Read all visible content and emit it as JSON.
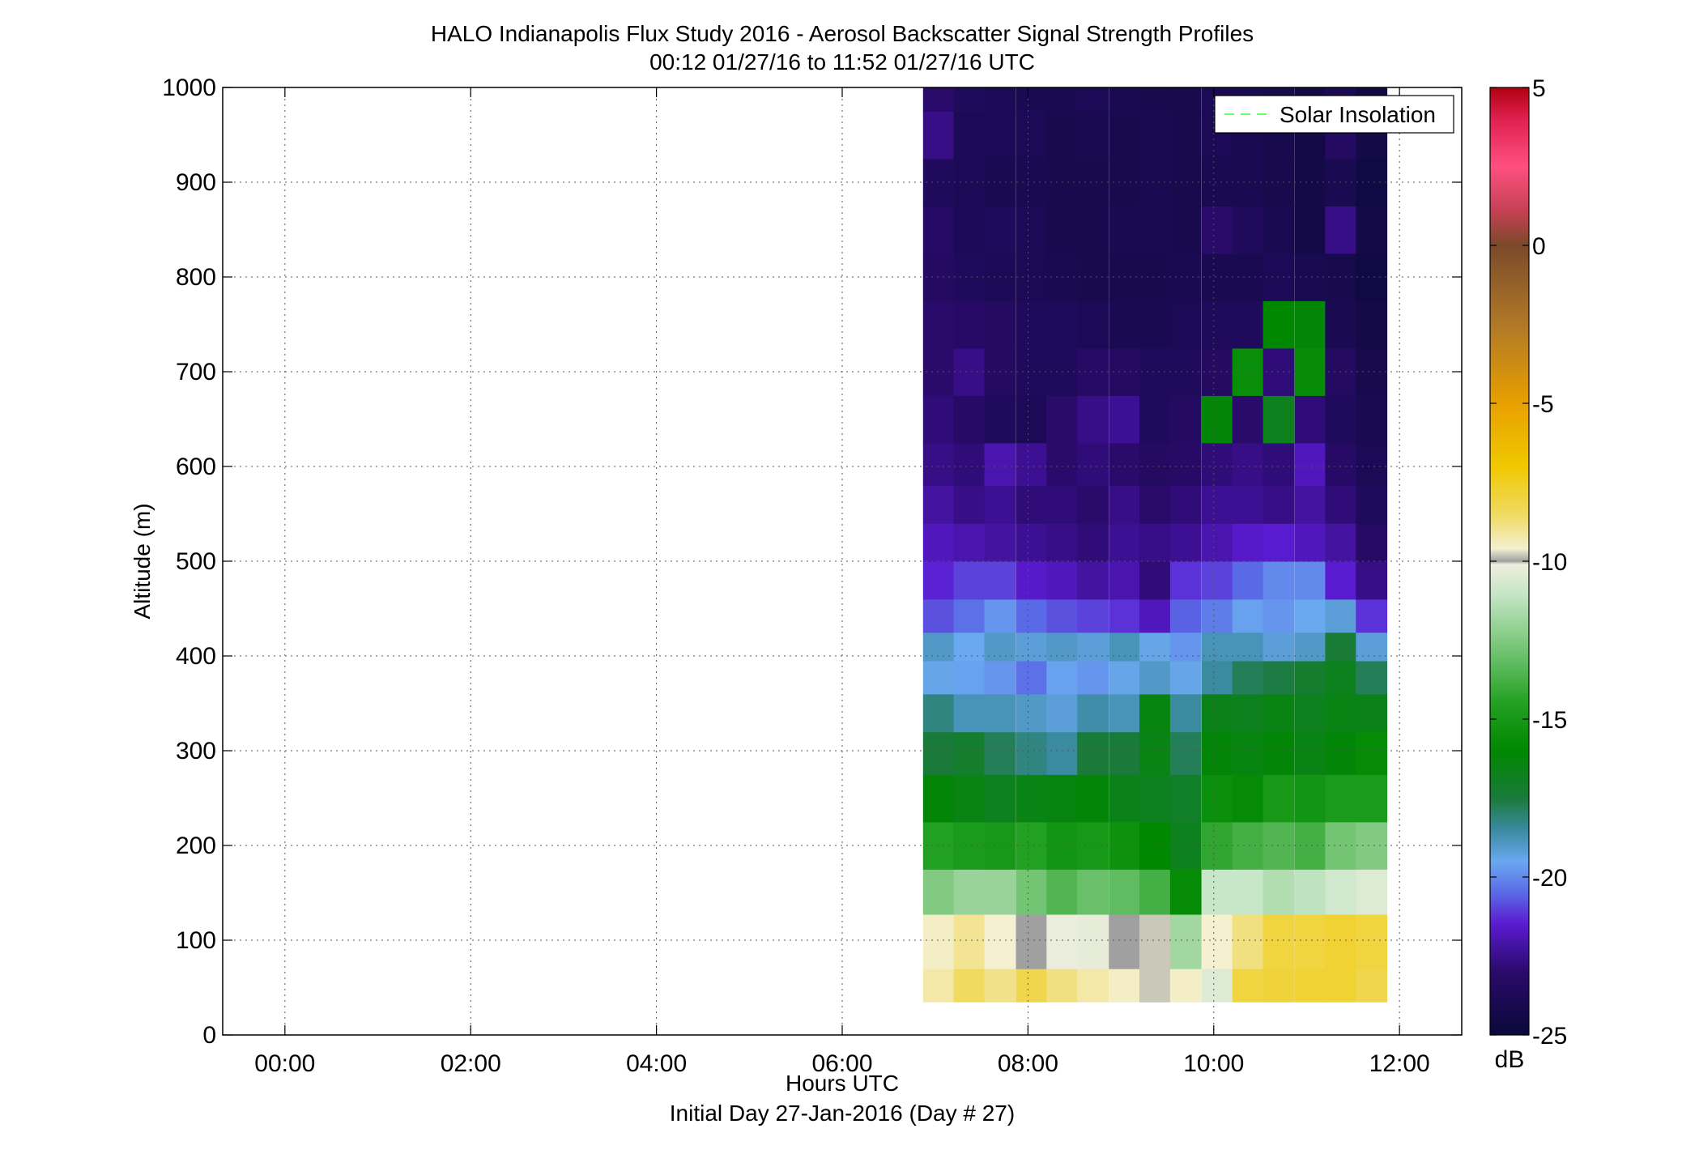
{
  "chart_data": {
    "type": "heatmap",
    "title": "HALO Indianapolis Flux Study 2016 - Aerosol Backscatter Signal Strength Profiles",
    "subtitle": "00:12 01/27/16 to 11:52 01/27/16  UTC",
    "xlabel": "Hours UTC",
    "xlabel2": "Initial Day 27-Jan-2016 (Day # 27)",
    "ylabel": "Altitude (m)",
    "xlim": [
      -0.67,
      12.67
    ],
    "ylim": [
      0,
      1000
    ],
    "grid": true,
    "xticks": [
      {
        "value": 0,
        "label": "00:00"
      },
      {
        "value": 2,
        "label": "02:00"
      },
      {
        "value": 4,
        "label": "04:00"
      },
      {
        "value": 6,
        "label": "06:00"
      },
      {
        "value": 8,
        "label": "08:00"
      },
      {
        "value": 10,
        "label": "10:00"
      },
      {
        "value": 12,
        "label": "12:00"
      }
    ],
    "yticks": [
      {
        "value": 0,
        "label": "0"
      },
      {
        "value": 100,
        "label": "100"
      },
      {
        "value": 200,
        "label": "200"
      },
      {
        "value": 300,
        "label": "300"
      },
      {
        "value": 400,
        "label": "400"
      },
      {
        "value": 500,
        "label": "500"
      },
      {
        "value": 600,
        "label": "600"
      },
      {
        "value": 700,
        "label": "700"
      },
      {
        "value": 800,
        "label": "800"
      },
      {
        "value": 900,
        "label": "900"
      },
      {
        "value": 1000,
        "label": "1000"
      }
    ],
    "legend": {
      "entries": [
        {
          "name": "Solar Insolation",
          "color": "#66ff66",
          "style": "dashed"
        }
      ],
      "placement": "top-right"
    },
    "colorbar": {
      "label": "dB",
      "range": [
        -25,
        5
      ],
      "ticks": [
        {
          "value": 5,
          "label": "5"
        },
        {
          "value": 0,
          "label": "0"
        },
        {
          "value": -5,
          "label": "-5"
        },
        {
          "value": -10,
          "label": "-10"
        },
        {
          "value": -15,
          "label": "-15"
        },
        {
          "value": -20,
          "label": "-20"
        },
        {
          "value": -25,
          "label": "-25"
        }
      ],
      "colors": [
        {
          "value": -25,
          "color": "#0a0a3a"
        },
        {
          "value": -23,
          "color": "#2a0a6a"
        },
        {
          "value": -21.5,
          "color": "#5a1ad0"
        },
        {
          "value": -20.5,
          "color": "#5a6ae6"
        },
        {
          "value": -19.5,
          "color": "#6aa8f0"
        },
        {
          "value": -18.5,
          "color": "#3a8aa0"
        },
        {
          "value": -17.5,
          "color": "#1a7a3a"
        },
        {
          "value": -16,
          "color": "#008800"
        },
        {
          "value": -14.5,
          "color": "#22a022"
        },
        {
          "value": -13,
          "color": "#6ac06a"
        },
        {
          "value": -11,
          "color": "#c8e6c8"
        },
        {
          "value": -10.1,
          "color": "#eeeedd"
        },
        {
          "value": -10,
          "color": "#a0a0a0"
        },
        {
          "value": -9.6,
          "color": "#f4f0d0"
        },
        {
          "value": -8.5,
          "color": "#f0da60"
        },
        {
          "value": -7,
          "color": "#f0c800"
        },
        {
          "value": -5,
          "color": "#e8a000"
        },
        {
          "value": -2.5,
          "color": "#b07828"
        },
        {
          "value": 0,
          "color": "#7a4a2a"
        },
        {
          "value": 1,
          "color": "#c04050"
        },
        {
          "value": 2.5,
          "color": "#ff5080"
        },
        {
          "value": 4,
          "color": "#e02050"
        },
        {
          "value": 5,
          "color": "#b00010"
        }
      ]
    },
    "data": {
      "time_start": 6.87,
      "time_step": 0.333,
      "times": [
        6.87,
        7.2,
        7.53,
        7.87,
        8.2,
        8.53,
        8.87,
        9.2,
        9.53,
        9.87,
        10.2,
        10.53,
        10.87,
        11.2,
        11.53
      ],
      "altitudes": [
        35,
        105,
        150,
        200,
        250,
        300,
        340,
        380,
        410,
        440,
        480,
        520,
        560,
        600,
        650,
        700,
        750,
        800,
        850,
        900,
        950,
        1000
      ],
      "db": [
        [
          -9.2,
          -8.5,
          -8.9,
          -8.2,
          -8.8,
          -9.2,
          -9.5,
          -9.8,
          -9.5,
          -10.5,
          -8.0,
          -7.9,
          -7.8,
          -7.8,
          -8.2
        ],
        [
          -9.5,
          -9.0,
          -9.6,
          -10.0,
          -10.2,
          -10.3,
          -10.0,
          -9.8,
          -11.8,
          -9.6,
          -8.8,
          -8.0,
          -8.0,
          -7.8,
          -8.0
        ],
        [
          -12.5,
          -12.0,
          -12.0,
          -12.8,
          -13.5,
          -13.0,
          -13.2,
          -13.8,
          -15.8,
          -11.0,
          -11.0,
          -11.5,
          -11.2,
          -10.8,
          -10.5
        ],
        [
          -14.5,
          -14.8,
          -15.0,
          -14.5,
          -15.2,
          -15.0,
          -15.4,
          -16.0,
          -16.8,
          -14.2,
          -13.8,
          -13.5,
          -13.8,
          -12.8,
          -12.5
        ],
        [
          -16.2,
          -16.5,
          -16.8,
          -16.5,
          -16.4,
          -16.2,
          -16.6,
          -16.8,
          -17.0,
          -15.5,
          -15.8,
          -15.0,
          -15.2,
          -14.8,
          -14.8
        ],
        [
          -17.5,
          -17.2,
          -17.8,
          -18.2,
          -18.5,
          -17.5,
          -17.5,
          -16.5,
          -17.8,
          -16.2,
          -16.4,
          -16.2,
          -16.5,
          -16.2,
          -15.8
        ],
        [
          -18.2,
          -18.8,
          -18.8,
          -19.0,
          -19.2,
          -18.6,
          -18.8,
          -16.4,
          -18.5,
          -16.6,
          -16.8,
          -16.5,
          -16.8,
          -16.5,
          -16.6
        ],
        [
          -19.4,
          -19.6,
          -19.8,
          -20.4,
          -19.6,
          -19.8,
          -19.4,
          -19.0,
          -19.4,
          -18.5,
          -17.8,
          -17.6,
          -17.2,
          -16.8,
          -17.8
        ],
        [
          -19.0,
          -19.5,
          -19.0,
          -19.2,
          -19.0,
          -19.2,
          -18.8,
          -19.4,
          -19.8,
          -18.8,
          -18.8,
          -19.2,
          -19.0,
          -17.4,
          -19.2
        ],
        [
          -20.8,
          -20.4,
          -19.8,
          -20.5,
          -20.8,
          -21.0,
          -21.2,
          -21.8,
          -20.6,
          -20.2,
          -19.6,
          -19.8,
          -19.5,
          -19.2,
          -21.2
        ],
        [
          -21.4,
          -21.0,
          -21.0,
          -21.6,
          -21.8,
          -22.2,
          -22.0,
          -22.8,
          -21.2,
          -21.0,
          -20.5,
          -20.0,
          -20.0,
          -21.5,
          -22.6
        ],
        [
          -21.8,
          -22.0,
          -22.2,
          -22.4,
          -22.6,
          -22.8,
          -22.4,
          -22.6,
          -22.4,
          -22.0,
          -21.6,
          -21.5,
          -21.8,
          -22.2,
          -23.2
        ],
        [
          -22.2,
          -22.6,
          -22.4,
          -22.8,
          -22.8,
          -23.0,
          -22.6,
          -23.0,
          -22.8,
          -22.4,
          -22.4,
          -22.6,
          -22.2,
          -22.8,
          -23.6
        ],
        [
          -22.6,
          -22.8,
          -22.0,
          -22.4,
          -23.0,
          -22.8,
          -23.0,
          -23.4,
          -23.2,
          -22.8,
          -22.6,
          -22.8,
          -21.8,
          -23.2,
          -23.8
        ],
        [
          -22.8,
          -23.2,
          -23.6,
          -23.8,
          -23.0,
          -22.6,
          -22.4,
          -23.6,
          -23.4,
          -16.2,
          -23.0,
          -16.8,
          -22.8,
          -23.6,
          -24.0
        ],
        [
          -23.0,
          -22.6,
          -23.4,
          -23.6,
          -23.6,
          -23.2,
          -23.4,
          -23.6,
          -23.6,
          -23.4,
          -15.6,
          -22.8,
          -15.8,
          -23.4,
          -24.2
        ],
        [
          -23.0,
          -23.2,
          -23.4,
          -23.6,
          -23.6,
          -23.8,
          -24.0,
          -24.0,
          -23.8,
          -23.6,
          -23.6,
          -16.0,
          -16.2,
          -24.0,
          -24.4
        ],
        [
          -23.4,
          -23.6,
          -23.8,
          -23.8,
          -24.0,
          -24.2,
          -24.2,
          -24.2,
          -24.0,
          -24.0,
          -24.0,
          -23.8,
          -24.0,
          -24.2,
          -24.6
        ],
        [
          -23.2,
          -23.8,
          -23.6,
          -23.8,
          -24.2,
          -24.2,
          -24.0,
          -24.0,
          -24.2,
          -23.0,
          -23.6,
          -24.0,
          -24.4,
          -22.6,
          -24.4
        ],
        [
          -23.6,
          -23.8,
          -24.0,
          -24.0,
          -24.2,
          -24.2,
          -24.2,
          -24.0,
          -24.2,
          -24.0,
          -24.0,
          -24.2,
          -24.4,
          -24.0,
          -24.6
        ],
        [
          -22.6,
          -23.8,
          -23.8,
          -23.8,
          -24.2,
          -24.0,
          -24.2,
          -24.0,
          -24.2,
          -23.8,
          -24.0,
          -24.2,
          -24.4,
          -23.4,
          -24.4
        ],
        [
          -23.0,
          -23.6,
          -23.8,
          -24.0,
          -24.0,
          -23.8,
          -24.0,
          -24.2,
          -24.2,
          -23.8,
          -24.0,
          -24.2,
          -24.4,
          -23.8,
          -24.6
        ]
      ]
    }
  }
}
